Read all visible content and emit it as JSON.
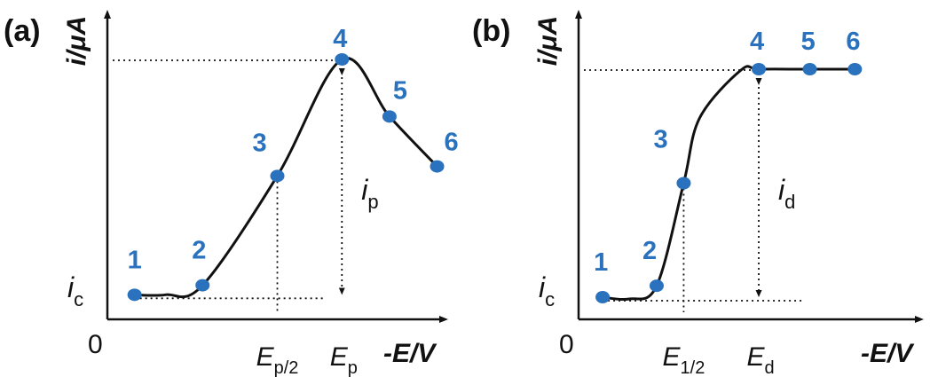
{
  "chart_data": [
    {
      "panel": "(a)",
      "type": "line",
      "ylabel": "i/μA",
      "xlabel": "-E/V",
      "origin_label": "0",
      "baseline_label": {
        "main": "i",
        "sub": "c"
      },
      "height_label": {
        "main": "i",
        "sub": "p"
      },
      "x_tick_labels": [
        {
          "main": "E",
          "sub": "p/2"
        },
        {
          "main": "E",
          "sub": "p"
        }
      ],
      "series": [
        {
          "points": [
            {
              "label": "1",
              "x": 0.08,
              "y": 0.01
            },
            {
              "label": "2",
              "x": 0.28,
              "y": 0.05
            },
            {
              "label": "3",
              "x": 0.5,
              "y": 0.51
            },
            {
              "label": "4",
              "x": 0.69,
              "y": 1.0
            },
            {
              "label": "5",
              "x": 0.83,
              "y": 0.76
            },
            {
              "label": "6",
              "x": 0.97,
              "y": 0.55
            }
          ]
        }
      ],
      "xlim": [
        0,
        1.2
      ],
      "ylim": [
        0,
        1.15
      ],
      "colors": {
        "points": "#2a72bd",
        "curve": "#111111"
      }
    },
    {
      "panel": "(b)",
      "type": "line",
      "ylabel": "i/μA",
      "xlabel": "-E/V",
      "origin_label": "0",
      "baseline_label": {
        "main": "i",
        "sub": "c"
      },
      "height_label": {
        "main": "i",
        "sub": "d"
      },
      "x_tick_labels": [
        {
          "main": "E",
          "sub": "1/2"
        },
        {
          "main": "E",
          "sub": "d"
        }
      ],
      "series": [
        {
          "points": [
            {
              "label": "1",
              "x": 0.08,
              "y": 0.0
            },
            {
              "label": "2",
              "x": 0.26,
              "y": 0.05
            },
            {
              "label": "3",
              "x": 0.35,
              "y": 0.5
            },
            {
              "label": "4",
              "x": 0.6,
              "y": 1.0
            },
            {
              "label": "5",
              "x": 0.77,
              "y": 1.0
            },
            {
              "label": "6",
              "x": 0.92,
              "y": 1.0
            }
          ]
        }
      ],
      "xlim": [
        0,
        1.2
      ],
      "ylim": [
        0,
        1.15
      ],
      "colors": {
        "points": "#2a72bd",
        "curve": "#111111"
      }
    }
  ]
}
